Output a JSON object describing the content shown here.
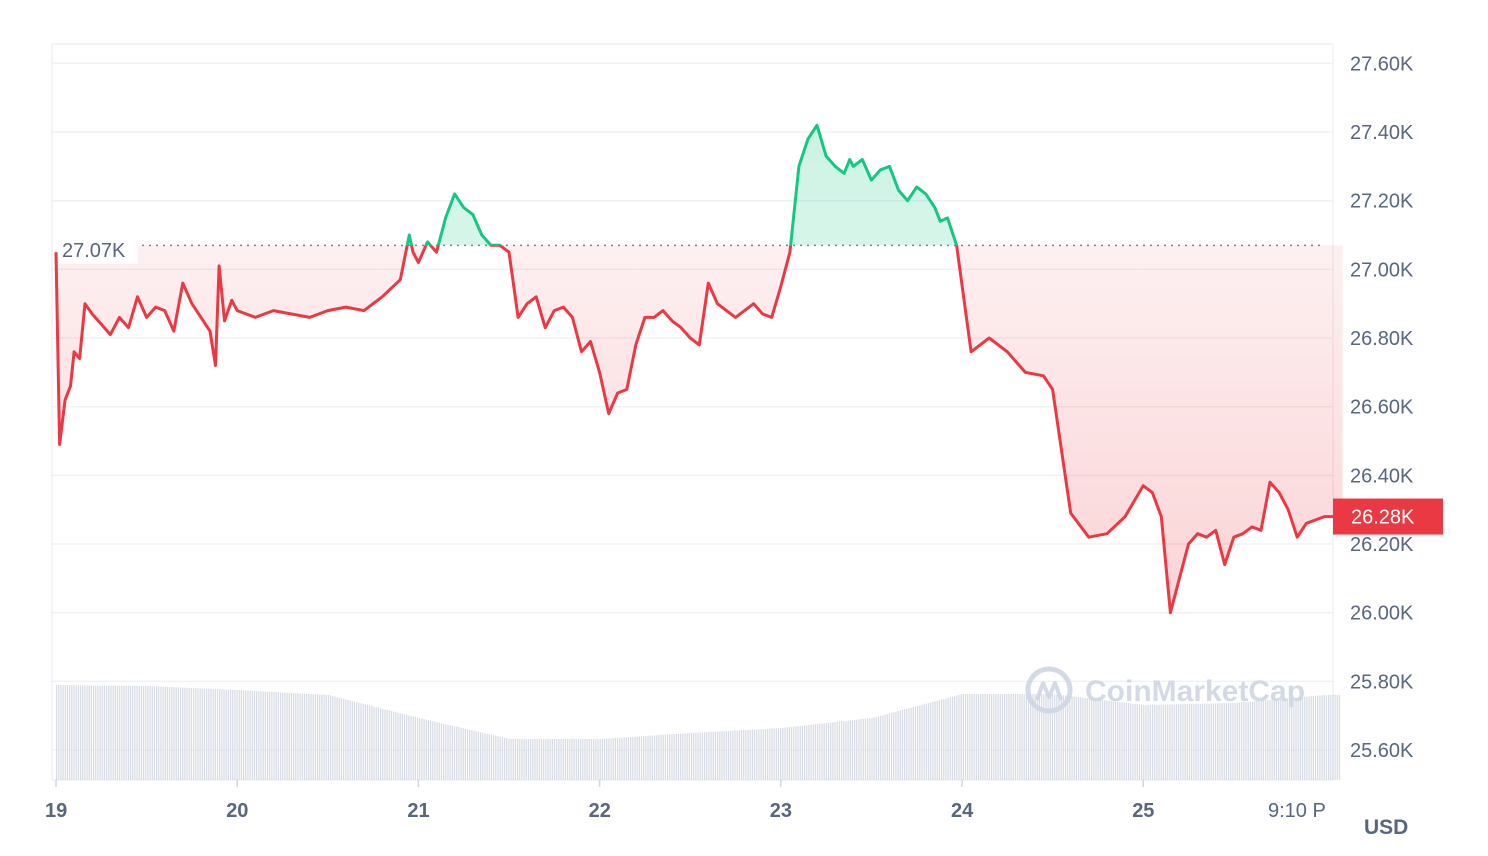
{
  "chart_data": {
    "type": "line",
    "title": "",
    "y_ticks": [
      25600,
      25800,
      26000,
      26200,
      26400,
      26600,
      26800,
      27000,
      27200,
      27400,
      27600
    ],
    "y_tick_labels": [
      "25.60K",
      "25.80K",
      "26.00K",
      "26.20K",
      "26.40K",
      "26.60K",
      "26.80K",
      "27.00K",
      "27.20K",
      "27.40K",
      "27.60K"
    ],
    "ylim": [
      25500,
      27660
    ],
    "x_tick_labels": [
      "19",
      "20",
      "21",
      "22",
      "23",
      "24",
      "25"
    ],
    "x_end_label": "9:10 P",
    "unit_label": "USD",
    "reference_price": 27070,
    "reference_label": "27.07K",
    "current_price": 26280,
    "current_label": "26.28K",
    "up_color": "#16c784",
    "down_color": "#ea3943",
    "watermark": "CoinMarketCap",
    "series": [
      {
        "x_day": [
          0.0,
          0.02,
          0.05,
          0.08,
          0.1,
          0.13,
          0.16,
          0.2,
          0.25,
          0.3,
          0.35,
          0.4,
          0.45,
          0.5,
          0.55,
          0.6,
          0.65,
          0.7,
          0.75,
          0.8,
          0.85,
          0.88,
          0.9,
          0.93,
          0.97,
          1.0,
          1.1,
          1.2,
          1.3,
          1.4,
          1.5,
          1.6,
          1.7,
          1.8,
          1.9,
          1.95,
          1.97,
          2.0,
          2.05,
          2.1,
          2.15,
          2.2,
          2.25,
          2.3,
          2.35,
          2.4,
          2.45,
          2.5,
          2.55,
          2.6,
          2.65,
          2.7,
          2.75,
          2.8,
          2.85,
          2.9,
          2.95,
          3.0,
          3.05,
          3.1,
          3.15,
          3.2,
          3.25,
          3.3,
          3.35,
          3.4,
          3.45,
          3.5,
          3.55,
          3.6,
          3.65,
          3.7,
          3.75,
          3.8,
          3.85,
          3.9,
          3.95,
          4.0,
          4.05,
          4.1,
          4.15,
          4.2,
          4.25,
          4.3,
          4.35,
          4.38,
          4.4,
          4.45,
          4.5,
          4.55,
          4.6,
          4.65,
          4.7,
          4.75,
          4.8,
          4.85,
          4.88,
          4.92,
          4.97,
          5.05,
          5.15,
          5.25,
          5.35,
          5.45,
          5.5,
          5.6,
          5.7,
          5.8,
          5.9,
          6.0,
          6.05,
          6.1,
          6.15,
          6.2,
          6.25,
          6.3,
          6.35,
          6.4,
          6.45,
          6.5,
          6.55,
          6.6,
          6.65,
          6.7,
          6.75,
          6.8,
          6.85,
          6.9,
          6.95,
          7.0,
          7.05,
          7.08,
          7.1
        ],
        "values": [
          27050,
          26490,
          26620,
          26660,
          26760,
          26740,
          26900,
          26870,
          26840,
          26810,
          26860,
          26830,
          26920,
          26860,
          26890,
          26880,
          26820,
          26960,
          26900,
          26860,
          26820,
          26720,
          27010,
          26850,
          26910,
          26880,
          26860,
          26880,
          26870,
          26860,
          26880,
          26890,
          26880,
          26920,
          26970,
          27100,
          27050,
          27020,
          27080,
          27050,
          27150,
          27220,
          27180,
          27160,
          27100,
          27070,
          27070,
          27050,
          26860,
          26900,
          26920,
          26830,
          26880,
          26890,
          26860,
          26760,
          26790,
          26700,
          26580,
          26640,
          26650,
          26780,
          26860,
          26860,
          26880,
          26850,
          26830,
          26800,
          26780,
          26960,
          26900,
          26880,
          26860,
          26880,
          26900,
          26870,
          26860,
          26950,
          27050,
          27300,
          27380,
          27420,
          27330,
          27300,
          27280,
          27320,
          27300,
          27320,
          27260,
          27290,
          27300,
          27230,
          27200,
          27240,
          27220,
          27180,
          27140,
          27150,
          27070,
          26760,
          26800,
          26760,
          26700,
          26690,
          26650,
          26290,
          26220,
          26230,
          26280,
          26370,
          26350,
          26280,
          26000,
          26100,
          26200,
          26230,
          26220,
          26240,
          26140,
          26220,
          26230,
          26250,
          26240,
          26380,
          26350,
          26300,
          26220,
          26260,
          26270,
          26280,
          26280,
          26280,
          26280
        ]
      }
    ],
    "volume": {
      "x_day": [
        0.0,
        0.5,
        1.0,
        1.5,
        2.0,
        2.5,
        3.0,
        3.5,
        4.0,
        4.5,
        5.0,
        5.5,
        6.0,
        6.5,
        7.0,
        7.1
      ],
      "relative": [
        0.95,
        0.94,
        0.9,
        0.85,
        0.62,
        0.41,
        0.41,
        0.47,
        0.52,
        0.62,
        0.86,
        0.86,
        0.75,
        0.77,
        0.85,
        0.85
      ]
    }
  }
}
